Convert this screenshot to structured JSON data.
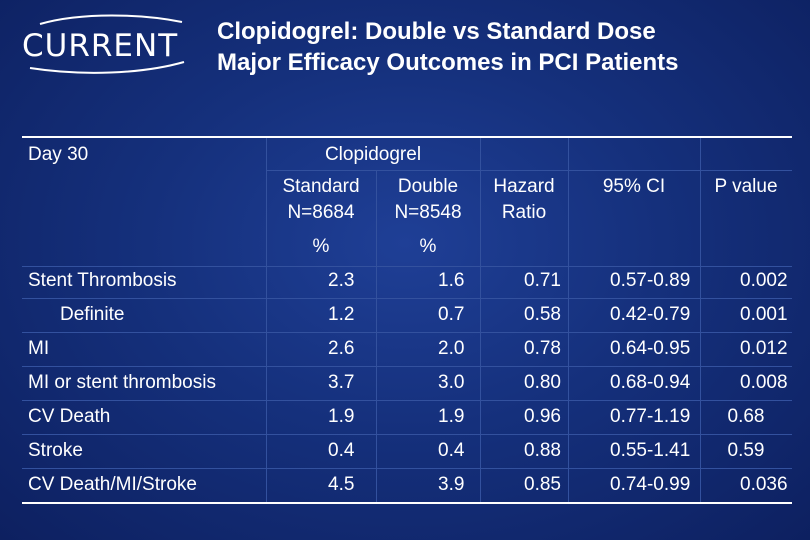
{
  "logo": {
    "text": "CURRENT",
    "icon": "swoosh-icon"
  },
  "title": {
    "line1": "Clopidogrel: Double vs Standard Dose",
    "line2": "Major Efficacy Outcomes in PCI Patients"
  },
  "table": {
    "header": {
      "day": "Day 30",
      "group": "Clopidogrel",
      "standard": "Standard",
      "standard_n": "N=8684",
      "double": "Double",
      "double_n": "N=8548",
      "hr": "Hazard",
      "hr2": "Ratio",
      "ci": "95% CI",
      "p": "P value",
      "pct1": "%",
      "pct2": "%"
    },
    "rows": [
      {
        "label": "Stent Thrombosis",
        "standard": "2.3",
        "double": "1.6",
        "hr": "0.71",
        "ci": "0.57-0.89",
        "p": "0.002"
      },
      {
        "label": "Definite",
        "standard": "1.2",
        "double": "0.7",
        "hr": "0.58",
        "ci": "0.42-0.79",
        "p": "0.001"
      },
      {
        "label": "MI",
        "standard": "2.6",
        "double": "2.0",
        "hr": "0.78",
        "ci": "0.64-0.95",
        "p": "0.012"
      },
      {
        "label": "MI or stent thrombosis",
        "standard": "3.7",
        "double": "3.0",
        "hr": "0.80",
        "ci": "0.68-0.94",
        "p": "0.008"
      },
      {
        "label": "CV Death",
        "standard": "1.9",
        "double": "1.9",
        "hr": "0.96",
        "ci": "0.77-1.19",
        "p": "0.68"
      },
      {
        "label": "Stroke",
        "standard": "0.4",
        "double": "0.4",
        "hr": "0.88",
        "ci": "0.55-1.41",
        "p": "0.59"
      },
      {
        "label": "CV Death/MI/Stroke",
        "standard": "4.5",
        "double": "3.9",
        "hr": "0.85",
        "ci": "0.74-0.99",
        "p": "0.036"
      }
    ]
  }
}
